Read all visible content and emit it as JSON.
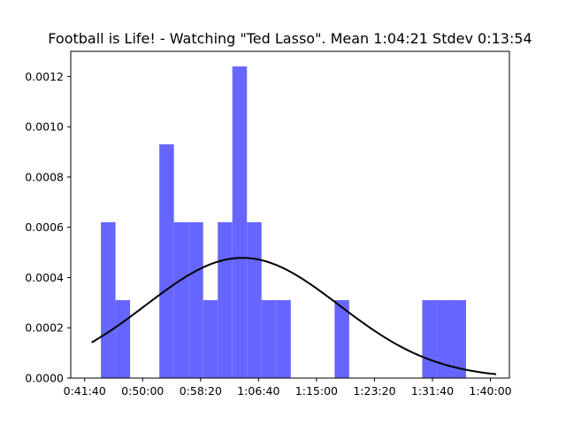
{
  "chart_data": {
    "type": "bar",
    "title": "Football is Life! - Watching \"Ted Lasso\". Mean 1:04:21 Stdev 0:13:54",
    "xlabel": "",
    "ylabel": "",
    "x_unit": "seconds",
    "xlim": [
      2380,
      6164
    ],
    "ylim": [
      0,
      0.0013
    ],
    "grid": false,
    "legend": "none",
    "bar_color": "#6666ff",
    "curve_color": "#000000",
    "x_ticks": [
      {
        "value": 2500,
        "label": "0:41:40"
      },
      {
        "value": 3000,
        "label": "0:50:00"
      },
      {
        "value": 3500,
        "label": "0:58:20"
      },
      {
        "value": 4000,
        "label": "1:06:40"
      },
      {
        "value": 4500,
        "label": "1:15:00"
      },
      {
        "value": 5000,
        "label": "1:23:20"
      },
      {
        "value": 5500,
        "label": "1:31:40"
      },
      {
        "value": 6000,
        "label": "1:40:00"
      }
    ],
    "y_ticks": [
      {
        "value": 0,
        "label": "0.0000"
      },
      {
        "value": 0.0002,
        "label": "0.0002"
      },
      {
        "value": 0.0004,
        "label": "0.0004"
      },
      {
        "value": 0.0006,
        "label": "0.0006"
      },
      {
        "value": 0.0008,
        "label": "0.0008"
      },
      {
        "value": 0.001,
        "label": "0.0010"
      },
      {
        "value": 0.0012,
        "label": "0.0012"
      }
    ],
    "bins": [
      {
        "x0": 2640,
        "x1": 2766,
        "value": 0.00062
      },
      {
        "x0": 2766,
        "x1": 2892,
        "value": 0.00031
      },
      {
        "x0": 3144,
        "x1": 3270,
        "value": 0.00093
      },
      {
        "x0": 3270,
        "x1": 3396,
        "value": 0.00062
      },
      {
        "x0": 3396,
        "x1": 3522,
        "value": 0.00062
      },
      {
        "x0": 3522,
        "x1": 3648,
        "value": 0.00031
      },
      {
        "x0": 3648,
        "x1": 3774,
        "value": 0.00062
      },
      {
        "x0": 3774,
        "x1": 3900,
        "value": 0.00124
      },
      {
        "x0": 3900,
        "x1": 4026,
        "value": 0.00062
      },
      {
        "x0": 4026,
        "x1": 4152,
        "value": 0.00031
      },
      {
        "x0": 4152,
        "x1": 4278,
        "value": 0.00031
      },
      {
        "x0": 4656,
        "x1": 4782,
        "value": 0.00031
      },
      {
        "x0": 5412,
        "x1": 5538,
        "value": 0.00031
      },
      {
        "x0": 5538,
        "x1": 5664,
        "value": 0.00031
      },
      {
        "x0": 5664,
        "x1": 5790,
        "value": 0.00031
      }
    ],
    "normal_curve": {
      "mean": 3861,
      "stdev": 834,
      "x_range": [
        2560,
        6050
      ]
    }
  }
}
